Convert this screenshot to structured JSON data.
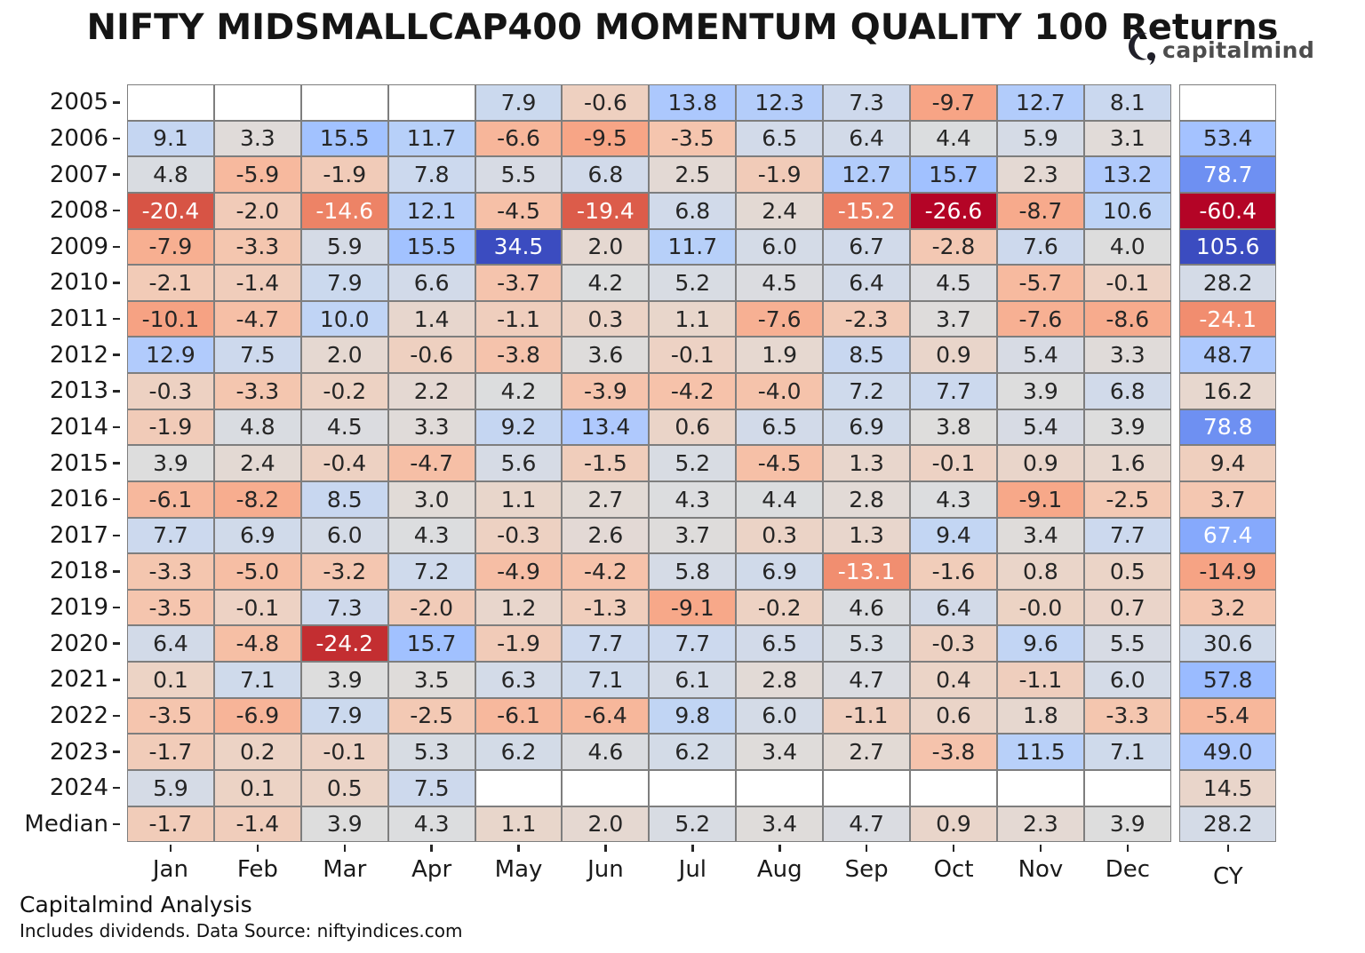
{
  "title": "NIFTY MIDSMALLCAP400 MOMENTUM QUALITY 100 Returns",
  "logo": {
    "text": "capitalmind"
  },
  "footer": {
    "line1": "Capitalmind Analysis",
    "line2": "Includes dividends. Data Source: niftyindices.com"
  },
  "chart_data": {
    "type": "heatmap",
    "title": "NIFTY MIDSMALLCAP400 MOMENTUM QUALITY 100 Returns",
    "columns": [
      "Jan",
      "Feb",
      "Mar",
      "Apr",
      "May",
      "Jun",
      "Jul",
      "Aug",
      "Sep",
      "Oct",
      "Nov",
      "Dec"
    ],
    "cy_column": "CY",
    "rows": [
      {
        "label": "2005",
        "values": [
          null,
          null,
          null,
          null,
          "7.9",
          "-0.6",
          "13.8",
          "12.3",
          "7.3",
          "-9.7",
          "12.7",
          "8.1"
        ],
        "cy": null
      },
      {
        "label": "2006",
        "values": [
          "9.1",
          "3.3",
          "15.5",
          "11.7",
          "-6.6",
          "-9.5",
          "-3.5",
          "6.5",
          "6.4",
          "4.4",
          "5.9",
          "3.1"
        ],
        "cy": "53.4"
      },
      {
        "label": "2007",
        "values": [
          "4.8",
          "-5.9",
          "-1.9",
          "7.8",
          "5.5",
          "6.8",
          "2.5",
          "-1.9",
          "12.7",
          "15.7",
          "2.3",
          "13.2"
        ],
        "cy": "78.7"
      },
      {
        "label": "2008",
        "values": [
          "-20.4",
          "-2.0",
          "-14.6",
          "12.1",
          "-4.5",
          "-19.4",
          "6.8",
          "2.4",
          "-15.2",
          "-26.6",
          "-8.7",
          "10.6"
        ],
        "cy": "-60.4"
      },
      {
        "label": "2009",
        "values": [
          "-7.9",
          "-3.3",
          "5.9",
          "15.5",
          "34.5",
          "2.0",
          "11.7",
          "6.0",
          "6.7",
          "-2.8",
          "7.6",
          "4.0"
        ],
        "cy": "105.6"
      },
      {
        "label": "2010",
        "values": [
          "-2.1",
          "-1.4",
          "7.9",
          "6.6",
          "-3.7",
          "4.2",
          "5.2",
          "4.5",
          "6.4",
          "4.5",
          "-5.7",
          "-0.1"
        ],
        "cy": "28.2"
      },
      {
        "label": "2011",
        "values": [
          "-10.1",
          "-4.7",
          "10.0",
          "1.4",
          "-1.1",
          "0.3",
          "1.1",
          "-7.6",
          "-2.3",
          "3.7",
          "-7.6",
          "-8.6"
        ],
        "cy": "-24.1"
      },
      {
        "label": "2012",
        "values": [
          "12.9",
          "7.5",
          "2.0",
          "-0.6",
          "-3.8",
          "3.6",
          "-0.1",
          "1.9",
          "8.5",
          "0.9",
          "5.4",
          "3.3"
        ],
        "cy": "48.7"
      },
      {
        "label": "2013",
        "values": [
          "-0.3",
          "-3.3",
          "-0.2",
          "2.2",
          "4.2",
          "-3.9",
          "-4.2",
          "-4.0",
          "7.2",
          "7.7",
          "3.9",
          "6.8"
        ],
        "cy": "16.2"
      },
      {
        "label": "2014",
        "values": [
          "-1.9",
          "4.8",
          "4.5",
          "3.3",
          "9.2",
          "13.4",
          "0.6",
          "6.5",
          "6.9",
          "3.8",
          "5.4",
          "3.9"
        ],
        "cy": "78.8"
      },
      {
        "label": "2015",
        "values": [
          "3.9",
          "2.4",
          "-0.4",
          "-4.7",
          "5.6",
          "-1.5",
          "5.2",
          "-4.5",
          "1.3",
          "-0.1",
          "0.9",
          "1.6"
        ],
        "cy": "9.4"
      },
      {
        "label": "2016",
        "values": [
          "-6.1",
          "-8.2",
          "8.5",
          "3.0",
          "1.1",
          "2.7",
          "4.3",
          "4.4",
          "2.8",
          "4.3",
          "-9.1",
          "-2.5"
        ],
        "cy": "3.7"
      },
      {
        "label": "2017",
        "values": [
          "7.7",
          "6.9",
          "6.0",
          "4.3",
          "-0.3",
          "2.6",
          "3.7",
          "0.3",
          "1.3",
          "9.4",
          "3.4",
          "7.7"
        ],
        "cy": "67.4"
      },
      {
        "label": "2018",
        "values": [
          "-3.3",
          "-5.0",
          "-3.2",
          "7.2",
          "-4.9",
          "-4.2",
          "5.8",
          "6.9",
          "-13.1",
          "-1.6",
          "0.8",
          "0.5"
        ],
        "cy": "-14.9"
      },
      {
        "label": "2019",
        "values": [
          "-3.5",
          "-0.1",
          "7.3",
          "-2.0",
          "1.2",
          "-1.3",
          "-9.1",
          "-0.2",
          "4.6",
          "6.4",
          "-0.0",
          "0.7"
        ],
        "cy": "3.2"
      },
      {
        "label": "2020",
        "values": [
          "6.4",
          "-4.8",
          "-24.2",
          "15.7",
          "-1.9",
          "7.7",
          "7.7",
          "6.5",
          "5.3",
          "-0.3",
          "9.6",
          "5.5"
        ],
        "cy": "30.6"
      },
      {
        "label": "2021",
        "values": [
          "0.1",
          "7.1",
          "3.9",
          "3.5",
          "6.3",
          "7.1",
          "6.1",
          "2.8",
          "4.7",
          "0.4",
          "-1.1",
          "6.0"
        ],
        "cy": "57.8"
      },
      {
        "label": "2022",
        "values": [
          "-3.5",
          "-6.9",
          "7.9",
          "-2.5",
          "-6.1",
          "-6.4",
          "9.8",
          "6.0",
          "-1.1",
          "0.6",
          "1.8",
          "-3.3"
        ],
        "cy": "-5.4"
      },
      {
        "label": "2023",
        "values": [
          "-1.7",
          "0.2",
          "-0.1",
          "5.3",
          "6.2",
          "4.6",
          "6.2",
          "3.4",
          "2.7",
          "-3.8",
          "11.5",
          "7.1"
        ],
        "cy": "49.0"
      },
      {
        "label": "2024",
        "values": [
          "5.9",
          "0.1",
          "0.5",
          "7.5",
          null,
          null,
          null,
          null,
          null,
          null,
          null,
          null
        ],
        "cy": "14.5"
      },
      {
        "label": "Median",
        "values": [
          "-1.7",
          "-1.4",
          "3.9",
          "4.3",
          "1.1",
          "2.0",
          "5.2",
          "3.4",
          "4.7",
          "0.9",
          "2.3",
          "3.9"
        ],
        "cy": "28.2"
      }
    ],
    "color_scale": {
      "palette": "coolwarm-reversed (red = negative, blue = positive, gray = neutral)",
      "negative_end_hex": "#b40426",
      "neutral_hex": "#dddddd",
      "positive_end_hex": "#3b4cc0",
      "monthly_domain": [
        -26.6,
        34.5
      ],
      "cy_domain": [
        -60.4,
        105.6
      ]
    },
    "legend_position": "none",
    "grid": true
  }
}
